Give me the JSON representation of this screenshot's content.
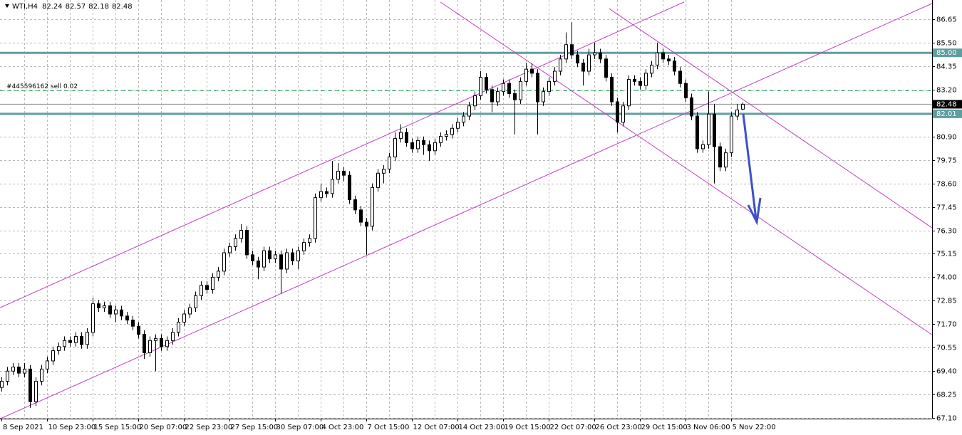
{
  "chart_data": {
    "type": "candlestick",
    "symbol": "WTI,H4",
    "categories": [
      "8 Sep 2021",
      null,
      null,
      null,
      null,
      null,
      null,
      null,
      "10 Sep 23:00",
      null,
      null,
      null,
      null,
      null,
      null,
      null,
      "15 Sep 15:00",
      null,
      null,
      null,
      null,
      null,
      null,
      null,
      "20 Sep 07:00",
      null,
      null,
      null,
      null,
      null,
      null,
      null,
      "22 Sep 23:00",
      null,
      null,
      null,
      null,
      null,
      null,
      null,
      "27 Sep 15:00",
      null,
      null,
      null,
      null,
      null,
      null,
      null,
      "30 Sep 07:00",
      null,
      null,
      null,
      null,
      null,
      null,
      null,
      "4 Oct 23:00",
      null,
      null,
      null,
      null,
      null,
      null,
      null,
      "7 Oct 15:00",
      null,
      null,
      null,
      null,
      null,
      null,
      null,
      "12 Oct 07:00",
      null,
      null,
      null,
      null,
      null,
      null,
      null,
      "14 Oct 23:00",
      null,
      null,
      null,
      null,
      null,
      null,
      null,
      "19 Oct 15:00",
      null,
      null,
      null,
      null,
      null,
      null,
      null,
      "22 Oct 07:00",
      null,
      null,
      null,
      null,
      null,
      null,
      null,
      "26 Oct 23:00",
      null,
      null,
      null,
      null,
      null,
      null,
      null,
      "29 Oct 15:00",
      null,
      null,
      null,
      null,
      null,
      null,
      null,
      "3 Nov 06:00",
      null,
      null,
      null,
      null,
      null,
      null,
      null,
      "5 Nov 22:00",
      null,
      null
    ],
    "open": [
      68.6,
      68.9,
      69.4,
      69.6,
      69.3,
      69.5,
      67.9,
      68.9,
      69.5,
      69.9,
      70.4,
      70.6,
      70.9,
      70.8,
      71.1,
      70.7,
      71.3,
      72.7,
      72.5,
      72.6,
      72.2,
      72.4,
      72.1,
      71.9,
      71.6,
      71.2,
      70.3,
      70.9,
      71.0,
      70.6,
      70.9,
      71.3,
      71.8,
      72.2,
      72.5,
      73.1,
      73.6,
      73.4,
      74.0,
      74.3,
      75.2,
      75.5,
      75.9,
      76.3,
      75.1,
      74.8,
      74.5,
      75.3,
      74.9,
      75.1,
      74.4,
      75.2,
      74.8,
      75.3,
      75.7,
      75.9,
      77.9,
      78.2,
      78.1,
      78.8,
      79.2,
      79.0,
      77.8,
      77.3,
      76.7,
      76.5,
      78.4,
      79.1,
      79.3,
      79.9,
      80.8,
      81.1,
      80.6,
      80.3,
      80.7,
      80.5,
      80.2,
      80.6,
      80.9,
      81.0,
      81.3,
      81.6,
      81.9,
      82.4,
      82.9,
      83.8,
      83.2,
      82.6,
      83.1,
      83.5,
      83.0,
      82.7,
      83.6,
      84.2,
      84.0,
      82.6,
      83.1,
      83.6,
      84.1,
      84.7,
      85.4,
      84.9,
      84.5,
      84.1,
      84.9,
      85.0,
      84.7,
      83.8,
      82.6,
      81.6,
      82.4,
      83.7,
      83.6,
      83.4,
      84.0,
      84.4,
      85.0,
      84.7,
      84.6,
      84.1,
      83.5,
      82.8,
      81.9,
      80.3,
      80.5,
      82.0,
      80.4,
      79.4,
      80.1,
      81.9,
      82.24
    ],
    "high": [
      69.1,
      69.6,
      69.8,
      69.8,
      69.8,
      69.7,
      69.1,
      69.7,
      70.1,
      70.6,
      70.8,
      71.1,
      71.1,
      71.3,
      71.3,
      71.5,
      73.0,
      72.9,
      72.8,
      72.8,
      72.6,
      72.6,
      72.3,
      72.1,
      71.8,
      71.4,
      71.1,
      71.2,
      71.2,
      71.1,
      71.5,
      72.0,
      72.4,
      72.7,
      73.3,
      73.8,
      73.8,
      74.2,
      74.5,
      75.4,
      75.7,
      76.1,
      76.6,
      76.5,
      75.3,
      75.0,
      75.5,
      75.5,
      75.3,
      75.3,
      75.4,
      75.4,
      75.5,
      75.9,
      76.1,
      78.1,
      78.6,
      78.4,
      79.7,
      79.6,
      79.4,
      79.2,
      78.0,
      77.5,
      76.9,
      78.6,
      79.3,
      79.5,
      80.1,
      81.1,
      81.5,
      81.3,
      80.8,
      80.9,
      80.9,
      80.7,
      80.8,
      81.1,
      81.2,
      81.5,
      81.8,
      82.1,
      82.6,
      83.1,
      84.1,
      84.0,
      83.4,
      83.3,
      83.7,
      83.7,
      83.2,
      83.8,
      84.5,
      84.5,
      84.2,
      83.3,
      83.8,
      84.3,
      84.9,
      86.0,
      86.5,
      85.1,
      84.7,
      85.2,
      85.5,
      85.2,
      84.9,
      84.0,
      82.8,
      82.6,
      83.9,
      83.9,
      83.8,
      84.2,
      84.6,
      85.5,
      85.2,
      84.9,
      84.8,
      84.3,
      83.7,
      83.0,
      82.1,
      80.7,
      83.1,
      82.5,
      80.6,
      80.3,
      82.1,
      82.5,
      82.57
    ],
    "low": [
      68.4,
      68.7,
      69.2,
      69.1,
      69.1,
      67.6,
      67.7,
      68.7,
      69.3,
      69.7,
      70.2,
      70.4,
      70.6,
      70.6,
      70.5,
      70.5,
      71.1,
      72.3,
      72.3,
      72.0,
      71.8,
      71.9,
      71.7,
      71.4,
      71.0,
      70.0,
      70.1,
      69.4,
      70.4,
      70.4,
      70.7,
      71.1,
      71.6,
      72.0,
      72.3,
      72.9,
      73.2,
      73.2,
      73.8,
      74.1,
      75.0,
      75.3,
      75.7,
      74.9,
      74.6,
      73.9,
      74.3,
      74.7,
      74.7,
      73.2,
      74.2,
      74.6,
      74.4,
      75.1,
      75.5,
      75.7,
      77.7,
      77.9,
      77.9,
      78.6,
      78.7,
      77.6,
      77.1,
      76.5,
      75.1,
      76.3,
      78.2,
      78.6,
      79.1,
      79.7,
      80.6,
      80.4,
      80.1,
      80.1,
      80.0,
      79.7,
      80.0,
      80.4,
      80.7,
      80.8,
      81.1,
      81.4,
      81.7,
      82.2,
      82.7,
      83.0,
      82.1,
      82.4,
      82.9,
      82.8,
      81.0,
      82.5,
      83.4,
      83.8,
      81.0,
      82.4,
      82.9,
      83.4,
      83.9,
      84.5,
      84.7,
      84.3,
      83.4,
      83.9,
      84.7,
      84.5,
      83.6,
      82.4,
      81.1,
      81.4,
      82.2,
      83.4,
      83.2,
      83.2,
      83.8,
      84.2,
      84.5,
      84.4,
      83.9,
      83.3,
      82.6,
      81.7,
      80.1,
      80.1,
      80.3,
      78.6,
      79.2,
      79.2,
      79.9,
      81.7,
      82.18
    ],
    "close": [
      68.9,
      69.4,
      69.6,
      69.3,
      69.5,
      67.9,
      68.9,
      69.5,
      69.9,
      70.4,
      70.6,
      70.9,
      70.8,
      71.1,
      70.7,
      71.3,
      72.7,
      72.5,
      72.6,
      72.2,
      72.4,
      72.1,
      71.9,
      71.6,
      71.2,
      70.3,
      70.9,
      71.0,
      70.6,
      70.9,
      71.3,
      71.8,
      72.2,
      72.5,
      73.1,
      73.6,
      73.4,
      74.0,
      74.3,
      75.2,
      75.5,
      75.9,
      76.3,
      75.1,
      74.8,
      74.5,
      75.3,
      74.9,
      75.1,
      74.4,
      75.2,
      74.8,
      75.3,
      75.7,
      75.9,
      77.9,
      78.2,
      78.1,
      78.8,
      79.2,
      79.0,
      77.8,
      77.3,
      76.7,
      76.5,
      78.4,
      79.1,
      79.3,
      79.9,
      80.8,
      81.1,
      80.6,
      80.3,
      80.7,
      80.5,
      80.2,
      80.6,
      80.9,
      81.0,
      81.3,
      81.6,
      81.9,
      82.4,
      82.9,
      83.8,
      83.2,
      82.6,
      83.1,
      83.5,
      83.0,
      82.7,
      83.6,
      84.2,
      84.0,
      82.6,
      83.1,
      83.6,
      84.1,
      84.7,
      85.4,
      84.9,
      84.5,
      84.1,
      84.9,
      85.0,
      84.7,
      83.8,
      82.6,
      81.6,
      82.4,
      83.7,
      83.6,
      83.4,
      84.0,
      84.4,
      85.0,
      84.7,
      84.6,
      84.1,
      83.5,
      82.8,
      81.9,
      80.3,
      80.5,
      82.0,
      80.4,
      79.4,
      80.1,
      81.9,
      82.2,
      82.48
    ],
    "ylim": [
      67.07,
      87.59
    ],
    "yticks": [
      86.65,
      {
        "value": 85.5,
        "label": "85.50"
      },
      84.35,
      {
        "value": 83.2,
        "label": "83.20"
      },
      {
        "value": 80.9,
        "label": "80.90"
      },
      79.75,
      {
        "value": 78.6,
        "label": "78.60"
      },
      77.45,
      {
        "value": 76.3,
        "label": "76.30"
      },
      75.15,
      {
        "value": 74,
        "label": "74.00"
      },
      72.85,
      {
        "value": 71.7,
        "label": "71.70"
      },
      70.55,
      {
        "value": 69.4,
        "label": "69.40"
      },
      68.25,
      {
        "value": 67.1,
        "label": "67.10"
      }
    ],
    "grid": true,
    "levels": [
      {
        "value": 85,
        "label": "85.00"
      },
      82.01
    ],
    "level_color": "#5f9ea0",
    "order": {
      "label": "#445596162 sell 0.02",
      "value": 83.15,
      "color": "#3cb371"
    },
    "trendline_color": "#c040c0",
    "trendlines": [
      {
        "x": [
          -0.25,
          119.75
        ],
        "y": [
          72.51,
          87.49
        ]
      },
      {
        "x": [
          -0.25,
          163.25
        ],
        "y": [
          67.06,
          87.42
        ]
      },
      {
        "x": [
          106.6,
          163.25
        ],
        "y": [
          87.17,
          76.42
        ]
      },
      {
        "x": [
          77,
          163.25
        ],
        "y": [
          87.49,
          71.18
        ]
      }
    ]
  }
}
